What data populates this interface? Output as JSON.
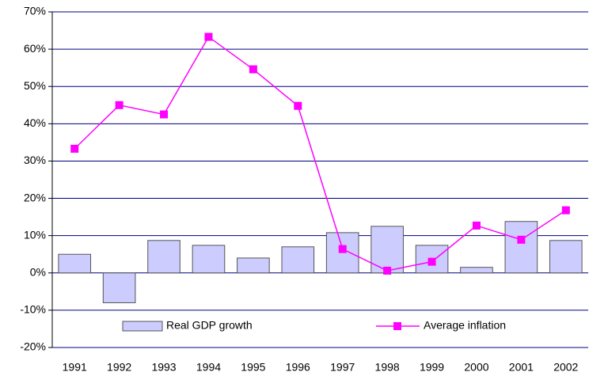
{
  "chart_data": {
    "type": "bar",
    "categories": [
      "1991",
      "1992",
      "1993",
      "1994",
      "1995",
      "1996",
      "1997",
      "1998",
      "1999",
      "2000",
      "2001",
      "2002"
    ],
    "series": [
      {
        "name": "Real GDP growth",
        "type": "bar",
        "color": "#ccccff",
        "values": [
          5,
          -8,
          8.7,
          7.4,
          4,
          7,
          10.8,
          12.5,
          7.4,
          1.5,
          13.8,
          8.7
        ]
      },
      {
        "name": "Average inflation",
        "type": "line",
        "color": "#ff00ff",
        "values": [
          33.3,
          45,
          42.5,
          63.3,
          54.6,
          44.8,
          6.4,
          0.6,
          3,
          12.7,
          8.9,
          16.8
        ]
      }
    ],
    "ylim": [
      -20,
      70
    ],
    "yticks": [
      {
        "value": -20,
        "label": "-20%"
      },
      {
        "value": -10,
        "label": "-10%"
      },
      {
        "value": 0,
        "label": "0%"
      },
      {
        "value": 10,
        "label": "10%"
      },
      {
        "value": 20,
        "label": "20%"
      },
      {
        "value": 30,
        "label": "30%"
      },
      {
        "value": 40,
        "label": "40%"
      },
      {
        "value": 50,
        "label": "50%"
      },
      {
        "value": 60,
        "label": "60%"
      },
      {
        "value": 70,
        "label": "70%"
      }
    ],
    "grid": true,
    "legend": "bottom"
  }
}
